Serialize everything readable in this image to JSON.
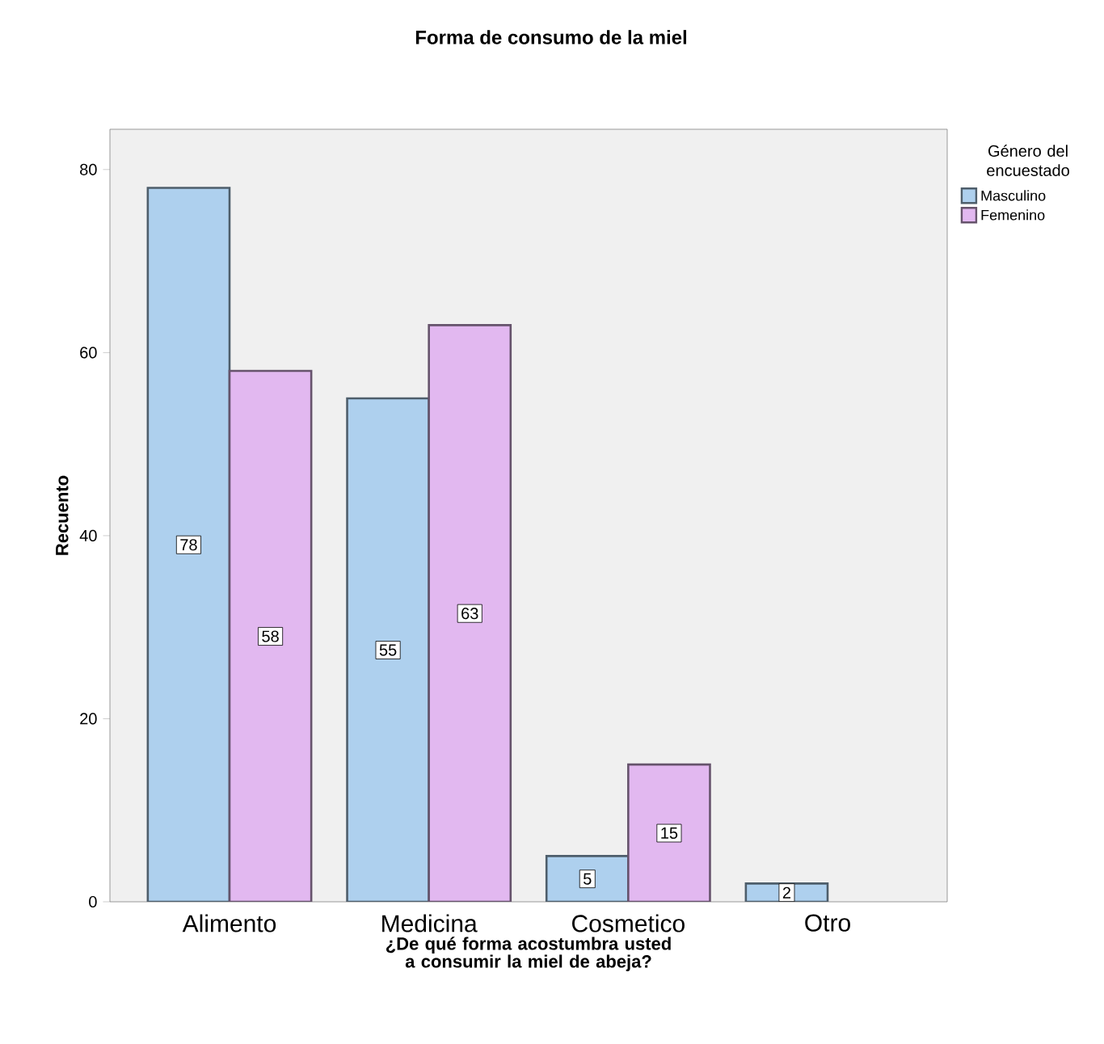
{
  "chart_data": {
    "type": "bar",
    "title": "Forma de consumo de la miel",
    "xlabel": "¿De qué forma acostumbra usted a consumir la miel de abeja?",
    "ylabel": "Recuento",
    "legend_title": "Género del encuestado",
    "categories": [
      "Alimento",
      "Medicina",
      "Cosmetico",
      "Otro"
    ],
    "series": [
      {
        "name": "Masculino",
        "color": "#aed0ee",
        "values": [
          78,
          55,
          5,
          2
        ]
      },
      {
        "name": "Femenino",
        "color": "#e2b8f0",
        "values": [
          58,
          63,
          15,
          null
        ]
      }
    ],
    "ylim": [
      0,
      84.4
    ],
    "yticks": [
      0,
      20,
      40,
      60,
      80
    ],
    "data_labels": true,
    "legend": "top right",
    "grid": false
  }
}
